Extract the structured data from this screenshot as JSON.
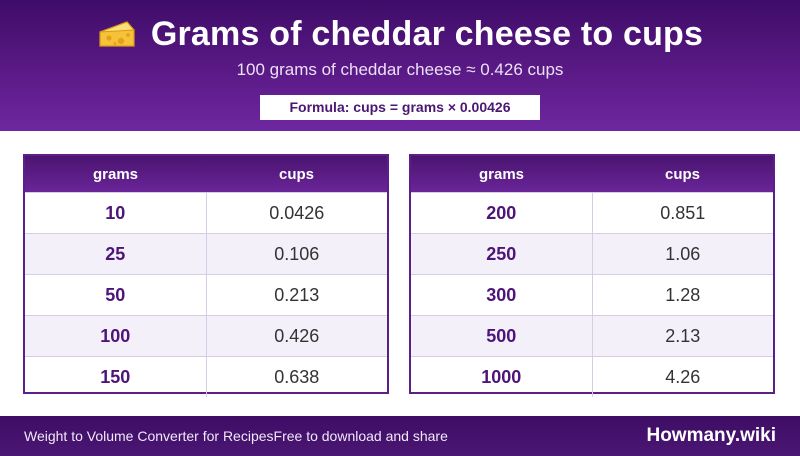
{
  "header": {
    "icon": "cheese-icon",
    "title": "Grams of cheddar cheese to cups",
    "subtitle": "100 grams of cheddar cheese ≈ 0.426 cups",
    "formula": "Formula: cups = grams × 0.00426"
  },
  "tables": [
    {
      "headers": {
        "grams": "grams",
        "cups": "cups"
      },
      "rows": [
        {
          "grams": "10",
          "cups": "0.0426"
        },
        {
          "grams": "25",
          "cups": "0.106"
        },
        {
          "grams": "50",
          "cups": "0.213"
        },
        {
          "grams": "100",
          "cups": "0.426"
        },
        {
          "grams": "150",
          "cups": "0.638"
        }
      ]
    },
    {
      "headers": {
        "grams": "grams",
        "cups": "cups"
      },
      "rows": [
        {
          "grams": "200",
          "cups": "0.851"
        },
        {
          "grams": "250",
          "cups": "1.06"
        },
        {
          "grams": "300",
          "cups": "1.28"
        },
        {
          "grams": "500",
          "cups": "2.13"
        },
        {
          "grams": "1000",
          "cups": "4.26"
        }
      ]
    }
  ],
  "footer": {
    "converter": "Weight to Volume Converter for Recipes",
    "share": "Free to download and share",
    "brand": "Howmany.wiki"
  },
  "colors": {
    "brand_purple": "#5a1a86",
    "header_dark": "#3f0c68",
    "row_alt": "#f4f0fa",
    "cheese": "#f6c23a"
  }
}
